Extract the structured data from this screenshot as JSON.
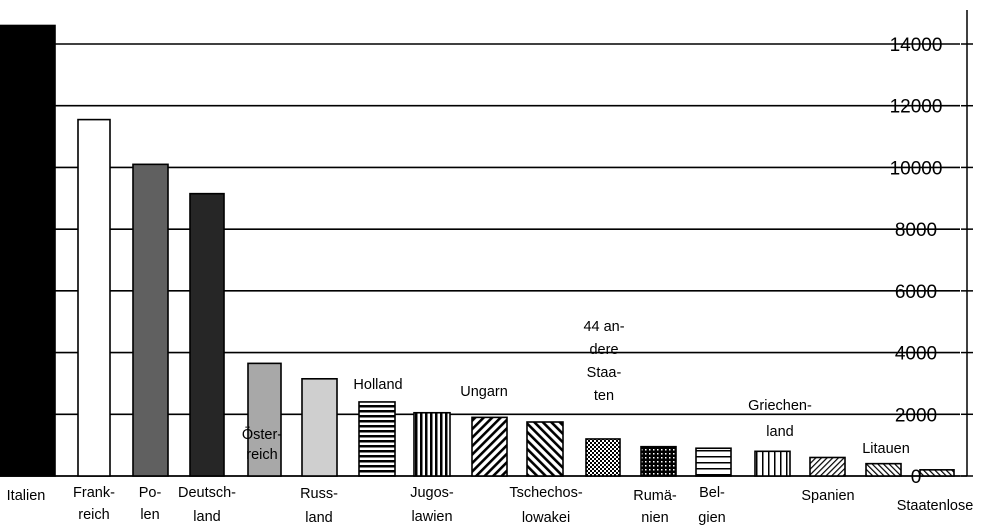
{
  "chart_data": {
    "type": "bar",
    "title": "",
    "xlabel": "",
    "ylabel": "",
    "ylim": [
      0,
      15000
    ],
    "grid": true,
    "y_axis_position": "right",
    "yticks": [
      "0",
      "2000",
      "4000",
      "6000",
      "8000",
      "10000",
      "12000",
      "14000"
    ],
    "categories": [
      {
        "lines": [
          "Italien"
        ],
        "value": 14600,
        "fill": "solid",
        "color": "#000000"
      },
      {
        "lines": [
          "Frank-",
          "reich"
        ],
        "value": 11550,
        "fill": "solid",
        "color": "#ffffff"
      },
      {
        "lines": [
          "Po-",
          "len"
        ],
        "value": 10100,
        "fill": "solid",
        "color": "#606060"
      },
      {
        "lines": [
          "Deutsch-",
          "land"
        ],
        "value": 9150,
        "fill": "solid",
        "color": "#262626"
      },
      {
        "lines": [
          "Öster-",
          "reich"
        ],
        "value": 3650,
        "fill": "solid",
        "color": "#a8a8a8"
      },
      {
        "lines": [
          "Russ-",
          "land"
        ],
        "value": 3150,
        "fill": "solid",
        "color": "#cfcfcf"
      },
      {
        "lines": [
          "Holland"
        ],
        "value": 2400,
        "fill": "hlines",
        "color": "#000000"
      },
      {
        "lines": [
          "Jugos-",
          "lawien"
        ],
        "value": 2050,
        "fill": "vlines",
        "color": "#000000"
      },
      {
        "lines": [
          "Ungarn"
        ],
        "value": 1900,
        "fill": "diag-down",
        "color": "#000000"
      },
      {
        "lines": [
          "Tschechos-",
          "lowakei"
        ],
        "value": 1750,
        "fill": "diag-up",
        "color": "#000000"
      },
      {
        "lines": [
          "44 an-",
          "dere",
          "Staa-",
          "ten"
        ],
        "value": 1200,
        "fill": "checker",
        "color": "#000000"
      },
      {
        "lines": [
          "Rumä-",
          "nien"
        ],
        "value": 950,
        "fill": "dense-grid",
        "color": "#000000"
      },
      {
        "lines": [
          "Bel-",
          "gien"
        ],
        "value": 900,
        "fill": "hlines-sparse",
        "color": "#000000"
      },
      {
        "lines": [
          "Griechen-",
          "land"
        ],
        "value": 800,
        "fill": "vlines-sparse",
        "color": "#000000"
      },
      {
        "lines": [
          "Spanien"
        ],
        "value": 600,
        "fill": "diag-down-fine",
        "color": "#000000"
      },
      {
        "lines": [
          "Litauen"
        ],
        "value": 400,
        "fill": "diag-up-fine",
        "color": "#000000"
      },
      {
        "lines": [
          "Staatenlose"
        ],
        "value": 200,
        "fill": "diag-up-fine",
        "color": "#000000"
      }
    ]
  }
}
